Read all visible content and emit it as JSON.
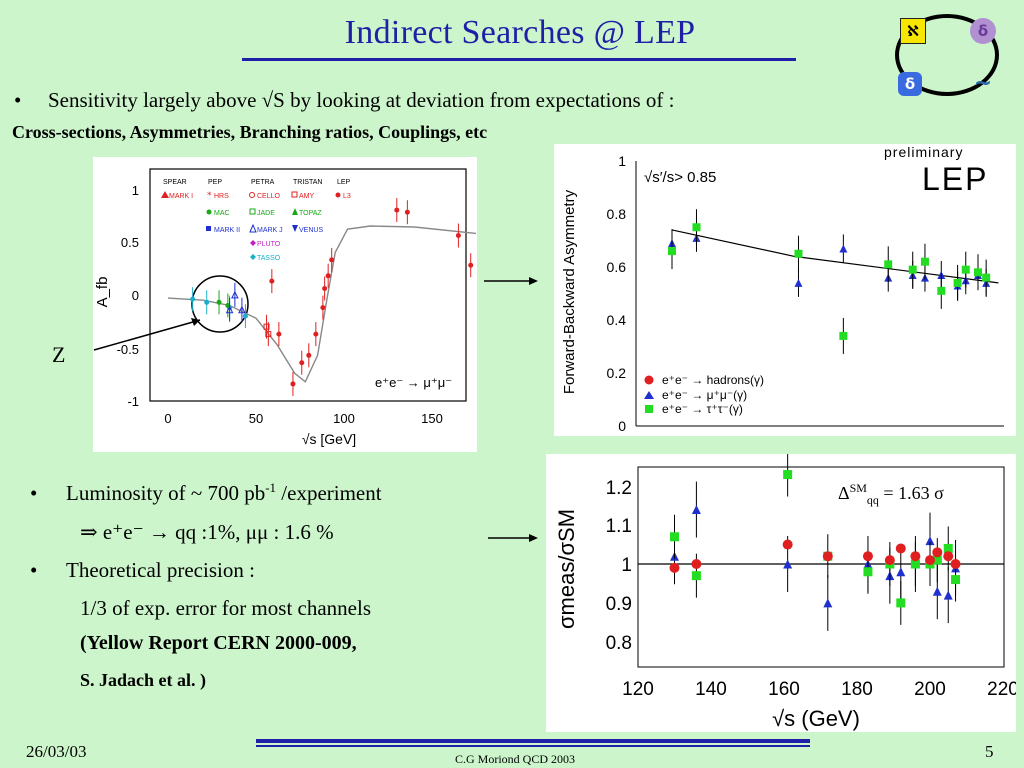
{
  "slide": {
    "title": "Indirect Searches @ LEP",
    "bullet_mark": "•",
    "line1": "Sensitivity largely above √S by looking at deviation from expectations of :",
    "line2": "Cross-sections,  Asymmetries, Branching ratios, Couplings, etc",
    "lumi_pre": "Luminosity of ~ 700 pb",
    "lumi_sup": "-1",
    "lumi_post": " /experiment",
    "implies": "⇒   e⁺e⁻ → qq  :1%, μμ : 1.6 %",
    "theory": "Theoretical precision :",
    "third": "1/3 of exp. error for most channels",
    "report": "(Yellow Report CERN 2000-009,",
    "author": "S. Jadach et al. )",
    "z_label": "Z",
    "delta": "Δ",
    "delta_sup": "SM",
    "delta_sub": "qq",
    "delta_val": " = 1.63 σ"
  },
  "footer": {
    "date": "26/03/03",
    "center": "C.G Moriond QCD 2003",
    "page": "5"
  },
  "logos": {
    "a": "ℵ",
    "b": "δ",
    "c": "δ",
    "d": "~"
  },
  "colors": {
    "title": "#1f1fa8",
    "background": "#ccf5cc",
    "red": "#e02020",
    "blue": "#2030d0",
    "green": "#22dd22"
  },
  "chart_data": [
    {
      "type": "scatter",
      "xlabel": "√s  [GeV]",
      "ylabel": "A_fb",
      "xlim": [
        0,
        180
      ],
      "ylim": [
        -1,
        1.2
      ],
      "xticks": [
        "0",
        "50",
        "100",
        "150"
      ],
      "yticks": [
        "1",
        "0.5",
        "0",
        "-0.5",
        "-1"
      ],
      "legend_headers": [
        "SPEAR",
        "PEP",
        "PETRA",
        "TRISTAN",
        "LEP"
      ],
      "legend": [
        "MARK I",
        "HRS",
        "CELLO",
        "AMY",
        "L3",
        "MAC",
        "JADE",
        "TOPAZ",
        "MARK II",
        "MARK J",
        "VENUS",
        "PLUTO",
        "TASSO"
      ],
      "reaction": "e⁺e⁻ → μ⁺μ⁻",
      "curve": [
        [
          0,
          -0.01
        ],
        [
          20,
          -0.03
        ],
        [
          35,
          -0.08
        ],
        [
          50,
          -0.2
        ],
        [
          62,
          -0.45
        ],
        [
          72,
          -0.72
        ],
        [
          78,
          -0.8
        ],
        [
          85,
          -0.55
        ],
        [
          90,
          -0.05
        ],
        [
          95,
          0.42
        ],
        [
          102,
          0.64
        ],
        [
          115,
          0.67
        ],
        [
          140,
          0.66
        ],
        [
          175,
          0.6
        ]
      ],
      "series": [
        {
          "name": "L3",
          "points": [
            [
              59,
              0.15
            ],
            [
              63,
              -0.35
            ],
            [
              71,
              -0.82
            ],
            [
              76,
              -0.62
            ],
            [
              80,
              -0.55
            ],
            [
              84,
              -0.35
            ],
            [
              88,
              -0.1
            ],
            [
              89,
              0.08
            ],
            [
              91,
              0.2
            ],
            [
              93,
              0.35
            ],
            [
              130,
              0.82
            ],
            [
              136,
              0.8
            ],
            [
              165,
              0.58
            ],
            [
              172,
              0.3
            ]
          ]
        },
        {
          "name": "TASSO",
          "points": [
            [
              14,
              -0.02
            ],
            [
              22,
              -0.05
            ],
            [
              35,
              -0.1
            ],
            [
              44,
              -0.18
            ]
          ]
        },
        {
          "name": "MAC",
          "points": [
            [
              29,
              -0.05
            ],
            [
              34,
              -0.08
            ]
          ]
        },
        {
          "name": "MARK J",
          "points": [
            [
              35,
              -0.12
            ],
            [
              38,
              0.02
            ],
            [
              42,
              -0.12
            ]
          ]
        },
        {
          "name": "AMY",
          "points": [
            [
              56,
              -0.28
            ],
            [
              57,
              -0.35
            ]
          ]
        }
      ]
    },
    {
      "type": "scatter",
      "title": "preliminary",
      "badge": "LEP",
      "cut": "√s′/s> 0.85",
      "ylabel": "Forward-Backward Asymmetry",
      "ylim": [
        0,
        1
      ],
      "yticks": [
        "1",
        "0.8",
        "0.6",
        "0.4",
        "0.2",
        "0"
      ],
      "legend": [
        "e⁺e⁻ → hadrons(γ)",
        "e⁺e⁻ → μ⁺μ⁻(γ)",
        "e⁺e⁻ → τ⁺τ⁻(γ)"
      ],
      "curve": [
        [
          130,
          0.74
        ],
        [
          160,
          0.64
        ],
        [
          190,
          0.58
        ],
        [
          210,
          0.54
        ]
      ],
      "series": [
        {
          "name": "μ⁺μ⁻",
          "values": [
            [
              130,
              0.69
            ],
            [
              136,
              0.71
            ],
            [
              161,
              0.54
            ],
            [
              172,
              0.67
            ],
            [
              183,
              0.56
            ],
            [
              189,
              0.57
            ],
            [
              192,
              0.56
            ],
            [
              196,
              0.57
            ],
            [
              200,
              0.53
            ],
            [
              202,
              0.55
            ],
            [
              205,
              0.57
            ],
            [
              207,
              0.54
            ]
          ]
        },
        {
          "name": "τ⁺τ⁻",
          "values": [
            [
              130,
              0.66
            ],
            [
              136,
              0.75
            ],
            [
              161,
              0.65
            ],
            [
              172,
              0.34
            ],
            [
              183,
              0.61
            ],
            [
              189,
              0.59
            ],
            [
              192,
              0.62
            ],
            [
              196,
              0.51
            ],
            [
              200,
              0.54
            ],
            [
              202,
              0.59
            ],
            [
              205,
              0.58
            ],
            [
              207,
              0.56
            ]
          ]
        }
      ]
    },
    {
      "type": "scatter",
      "xlabel": "√s (GeV)",
      "ylabel": "σmeas/σSM",
      "xlim": [
        120,
        220
      ],
      "ylim": [
        0.75,
        1.25
      ],
      "xticks": [
        "120",
        "140",
        "160",
        "180",
        "200",
        "220"
      ],
      "yticks": [
        "1.2",
        "1.1",
        "1",
        "0.9",
        "0.8"
      ],
      "series": [
        {
          "name": "hadrons",
          "values": [
            [
              130,
              0.99
            ],
            [
              136,
              1.0
            ],
            [
              161,
              1.05
            ],
            [
              172,
              1.02
            ],
            [
              183,
              1.02
            ],
            [
              189,
              1.01
            ],
            [
              192,
              1.04
            ],
            [
              196,
              1.02
            ],
            [
              200,
              1.01
            ],
            [
              202,
              1.03
            ],
            [
              205,
              1.02
            ],
            [
              207,
              1.0
            ]
          ]
        },
        {
          "name": "μμ",
          "values": [
            [
              130,
              1.02
            ],
            [
              136,
              1.14
            ],
            [
              161,
              1.0
            ],
            [
              172,
              0.9
            ],
            [
              183,
              1.0
            ],
            [
              189,
              0.97
            ],
            [
              192,
              0.98
            ],
            [
              196,
              1.0
            ],
            [
              200,
              1.06
            ],
            [
              202,
              0.93
            ],
            [
              205,
              0.92
            ],
            [
              207,
              0.99
            ]
          ]
        },
        {
          "name": "ττ",
          "values": [
            [
              130,
              1.07
            ],
            [
              136,
              0.97
            ],
            [
              161,
              1.23
            ],
            [
              172,
              1.02
            ],
            [
              183,
              0.98
            ],
            [
              189,
              1.0
            ],
            [
              192,
              0.9
            ],
            [
              196,
              1.0
            ],
            [
              200,
              1.0
            ],
            [
              202,
              1.01
            ],
            [
              205,
              1.04
            ],
            [
              207,
              0.96
            ]
          ]
        }
      ]
    }
  ]
}
